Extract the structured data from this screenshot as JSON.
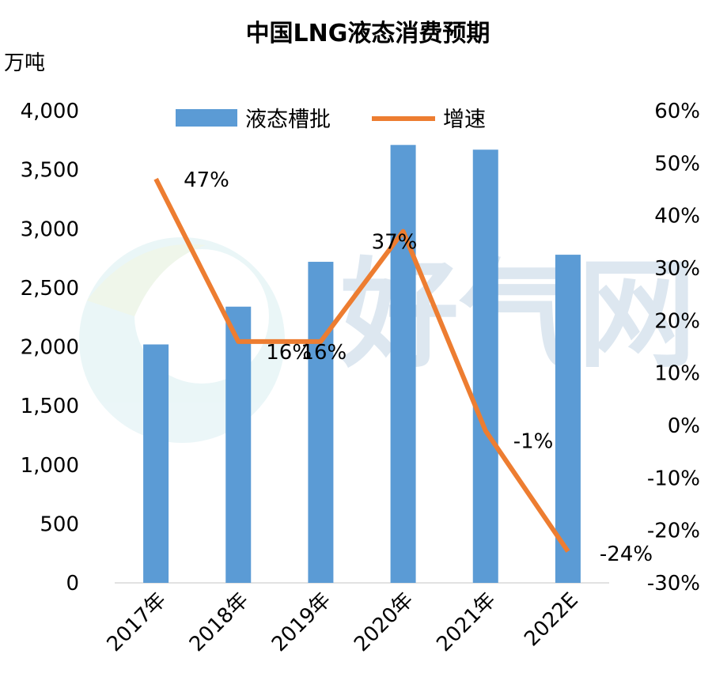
{
  "chart_data": {
    "type": "bar+line",
    "title": "中国LNG液态消费预期",
    "ylabel_left": "万吨",
    "categories": [
      "2017年",
      "2018年",
      "2019年",
      "2020年",
      "2021年",
      "2022E"
    ],
    "series": [
      {
        "name": "液态槽批",
        "type": "bar",
        "axis": "left",
        "color": "#5B9BD5",
        "values": [
          2020,
          2340,
          2720,
          3710,
          3670,
          2780
        ]
      },
      {
        "name": "增速",
        "type": "line",
        "axis": "right",
        "color": "#ED7D31",
        "values": [
          47,
          16,
          16,
          37,
          -1,
          -24
        ],
        "labels": [
          "47%",
          "16%",
          "16%",
          "37%",
          "-1%",
          "-24%"
        ]
      }
    ],
    "left_axis": {
      "range": [
        0,
        4000
      ],
      "ticks": [
        "0",
        "500",
        "1,000",
        "1,500",
        "2,000",
        "2,500",
        "3,000",
        "3,500",
        "4,000"
      ]
    },
    "right_axis": {
      "range": [
        -30,
        60
      ],
      "ticks": [
        "-30%",
        "-20%",
        "-10%",
        "0%",
        "10%",
        "20%",
        "30%",
        "40%",
        "50%",
        "60%"
      ]
    },
    "legend_position": "top",
    "grid": false,
    "watermark": "好气网"
  }
}
